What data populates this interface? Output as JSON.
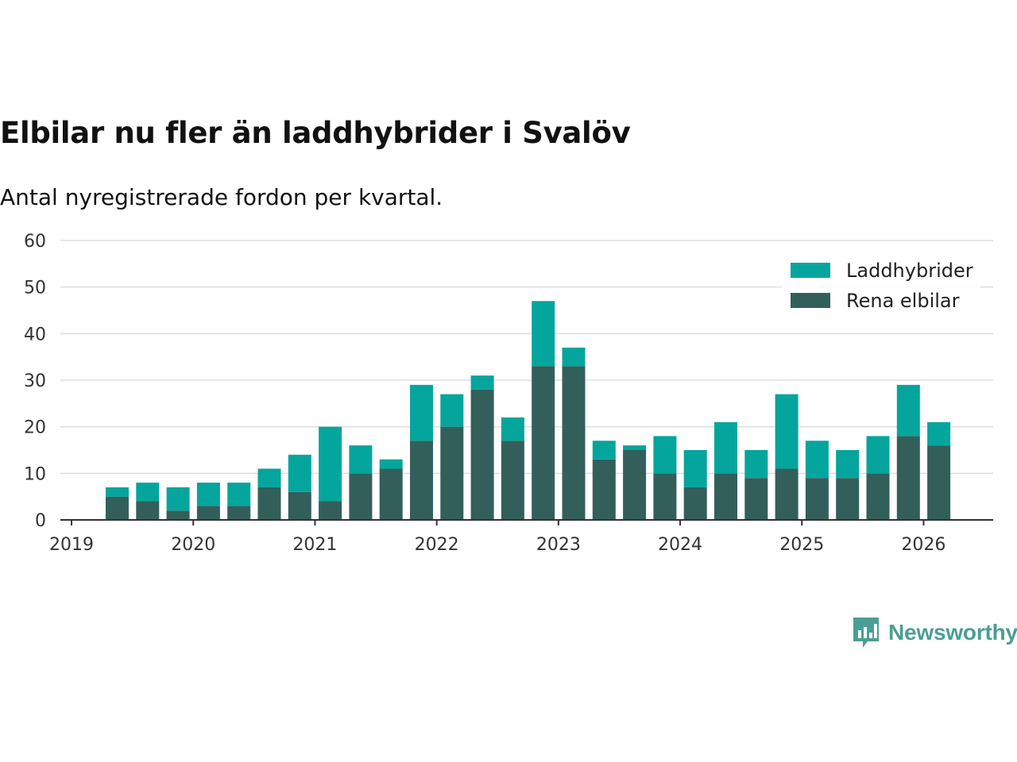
{
  "title": "Elbilar nu fler än laddhybrider i Svalöv",
  "subtitle": "Antal nyregistrerade fordon per kvartal.",
  "brand": {
    "name": "Newsworthy",
    "icon": "newsworthy-logo-icon",
    "color": "#4a9e95"
  },
  "colors": {
    "laddhybrider": "#04a59d",
    "rena_elbilar": "#335f5b",
    "grid": "#dddddd",
    "axis": "#333333"
  },
  "chart_data": {
    "type": "bar",
    "stacked": true,
    "title": "Elbilar nu fler än laddhybrider i Svalöv",
    "subtitle": "Antal nyregistrerade fordon per kvartal.",
    "xlabel": "",
    "ylabel": "",
    "ylim": [
      0,
      60
    ],
    "yticks": [
      0,
      10,
      20,
      30,
      40,
      50,
      60
    ],
    "xticks": [
      "2019",
      "2020",
      "2021",
      "2022",
      "2023",
      "2024",
      "2025",
      "2026"
    ],
    "grid": true,
    "legend_position": "top-right",
    "categories": [
      "2019 Q2",
      "2019 Q3",
      "2019 Q4",
      "2020 Q1",
      "2020 Q2",
      "2020 Q3",
      "2020 Q4",
      "2021 Q1",
      "2021 Q2",
      "2021 Q3",
      "2021 Q4",
      "2022 Q1",
      "2022 Q2",
      "2022 Q3",
      "2022 Q4",
      "2023 Q1",
      "2023 Q2",
      "2023 Q3",
      "2023 Q4",
      "2024 Q1",
      "2024 Q2",
      "2024 Q3",
      "2024 Q4",
      "2025 Q1",
      "2025 Q2",
      "2025 Q3",
      "2025 Q4",
      "2026 Q1"
    ],
    "series": [
      {
        "name": "Rena elbilar",
        "color": "#335f5b",
        "values": [
          5,
          4,
          2,
          3,
          3,
          7,
          6,
          4,
          10,
          11,
          17,
          20,
          28,
          17,
          33,
          33,
          13,
          15,
          10,
          7,
          10,
          9,
          11,
          9,
          9,
          10,
          18,
          16
        ]
      },
      {
        "name": "Laddhybrider",
        "color": "#04a59d",
        "values": [
          2,
          4,
          5,
          5,
          5,
          4,
          8,
          16,
          6,
          2,
          12,
          7,
          3,
          5,
          14,
          4,
          4,
          1,
          8,
          8,
          11,
          6,
          16,
          8,
          6,
          8,
          11,
          5
        ]
      }
    ],
    "legend": [
      "Laddhybrider",
      "Rena elbilar"
    ]
  }
}
